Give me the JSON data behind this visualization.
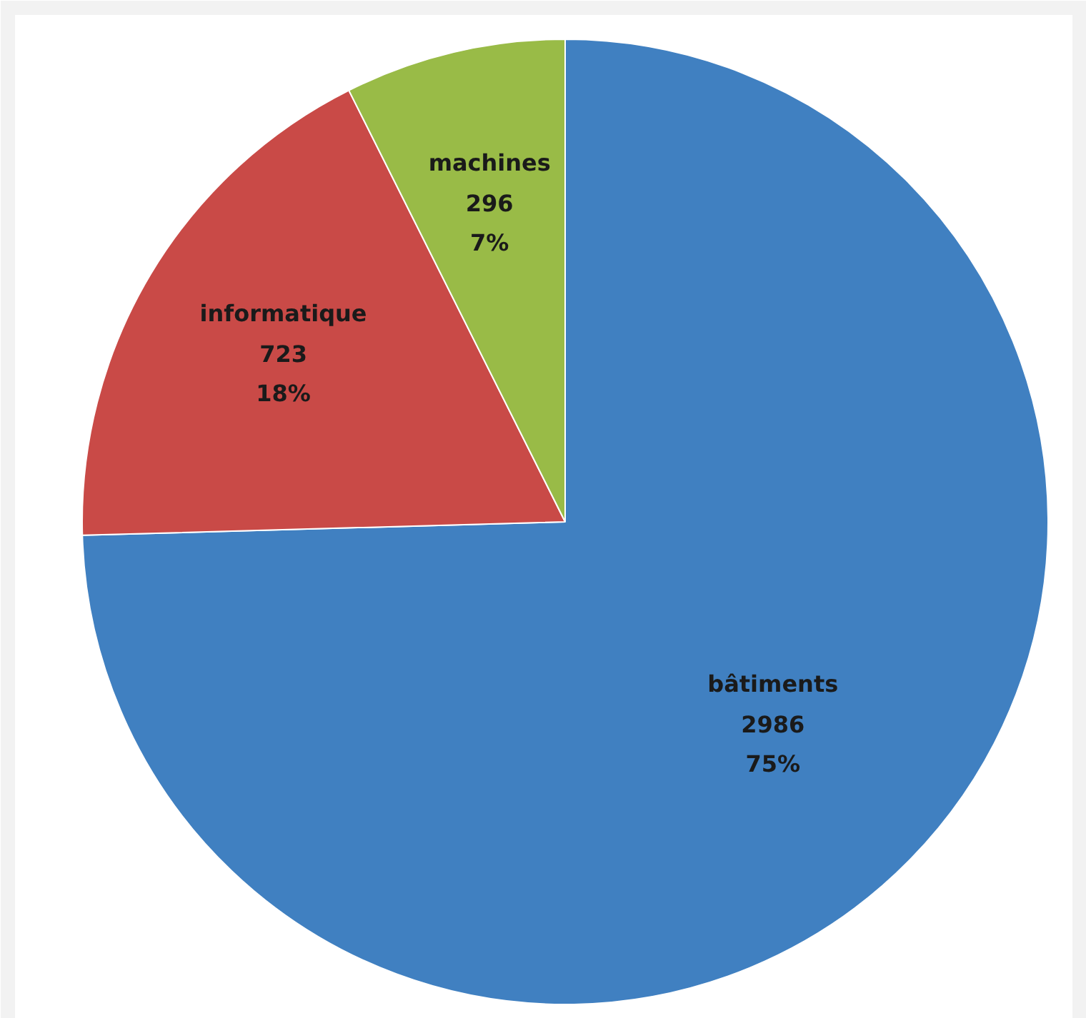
{
  "chart_data": {
    "type": "pie",
    "categories": [
      "bâtiments",
      "informatique",
      "machines"
    ],
    "values": [
      2986,
      723,
      296
    ],
    "colors": [
      "#4080c1",
      "#c94a47",
      "#99bb47"
    ],
    "value_labels": [
      "2986\n75%",
      "723\n18%",
      "296\n7%"
    ]
  }
}
